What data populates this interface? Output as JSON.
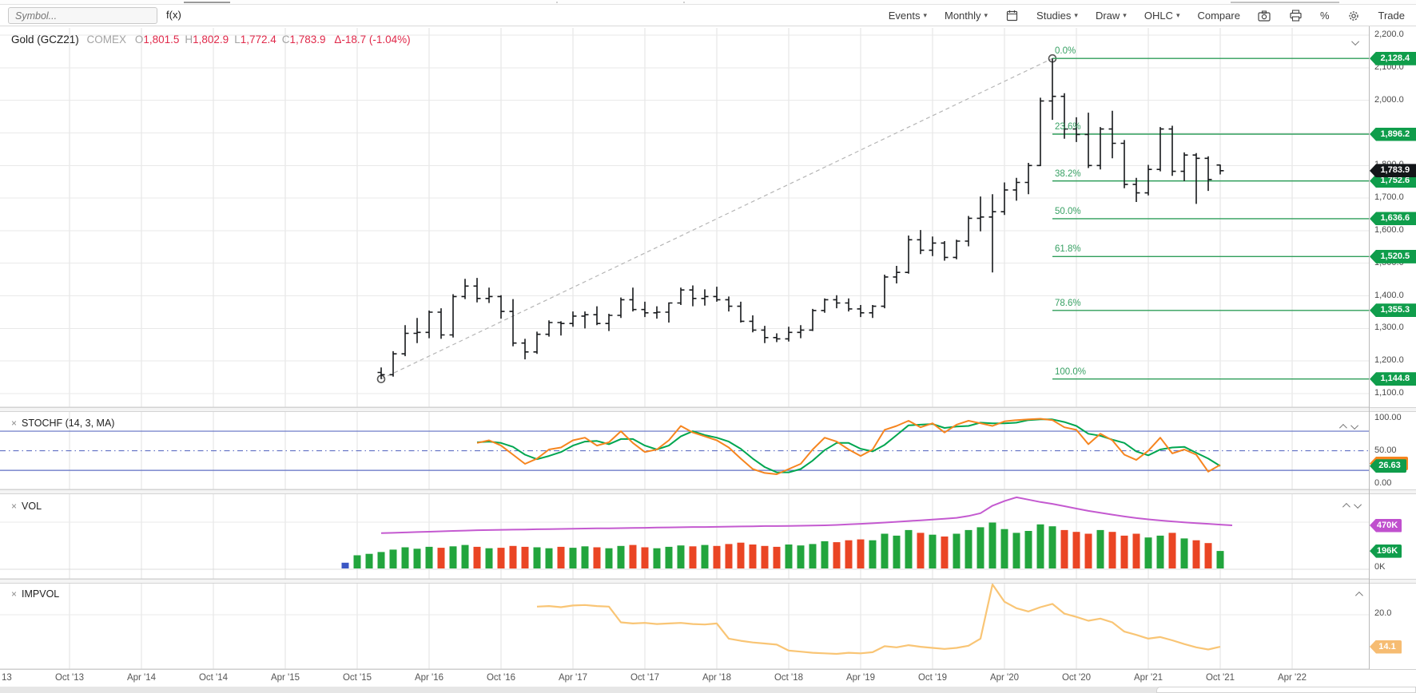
{
  "toolbar": {
    "symbol_placeholder": "Symbol...",
    "fx_label": "f(x)",
    "menus": [
      {
        "label": "Events",
        "caret": true
      },
      {
        "label": "Monthly",
        "caret": true
      },
      {
        "label": "calendar",
        "icon": "calendar-icon"
      },
      {
        "label": "Studies",
        "caret": true
      },
      {
        "label": "Draw",
        "caret": true
      },
      {
        "label": "OHLC",
        "caret": true
      },
      {
        "label": "Compare",
        "caret": false
      },
      {
        "label": "camera",
        "icon": "camera-icon"
      },
      {
        "label": "print",
        "icon": "printer-icon"
      },
      {
        "label": "%",
        "icon": "percent-icon",
        "text_icon": true
      },
      {
        "label": "gear",
        "icon": "gear-icon"
      },
      {
        "label": "Trade",
        "caret": false
      }
    ]
  },
  "header": {
    "title": "Gold (GCZ21)",
    "exchange": "COMEX",
    "fields": [
      {
        "k": "O",
        "v": "1,801.5"
      },
      {
        "k": "H",
        "v": "1,802.9"
      },
      {
        "k": "L",
        "v": "1,772.4"
      },
      {
        "k": "C",
        "v": "1,783.9"
      }
    ],
    "change": "Δ-18.7 (-1.04%)"
  },
  "colors": {
    "bar": "#17191c",
    "fib_line": "#2f9e5a",
    "fib_text": "#38a164",
    "badge_green": "#0f9d4b",
    "badge_black": "#131619",
    "badge_purple": "#c050ce",
    "badge_lightorange": "#f6bc72",
    "stoch_orange": "#f6851f",
    "stoch_green": "#00a650",
    "vol_up": "#22a53d",
    "vol_down": "#ea4524",
    "vol_even": "#3b57c4",
    "vol_ma": "#c45ad0",
    "impvol_line": "#f9c575",
    "guide_blue": "#5f6fc3",
    "grid": "#e9e9e9",
    "vgrid": "#e2e2e2",
    "trend": "#b5b5b5",
    "red_text": "#e0294a"
  },
  "price_axis": {
    "ticks": [
      {
        "label": "2,200.0",
        "value": 2200
      },
      {
        "label": "2,100.0",
        "value": 2100
      },
      {
        "label": "2,000.0",
        "value": 2000
      },
      {
        "label": "1,900.0",
        "value": 1900
      },
      {
        "label": "1,800.0",
        "value": 1800
      },
      {
        "label": "1,700.0",
        "value": 1700
      },
      {
        "label": "1,600.0",
        "value": 1600
      },
      {
        "label": "1,500.0",
        "value": 1500
      },
      {
        "label": "1,400.0",
        "value": 1400
      },
      {
        "label": "1,300.0",
        "value": 1300
      },
      {
        "label": "1,200.0",
        "value": 1200
      },
      {
        "label": "1,100.0",
        "value": 1100
      }
    ]
  },
  "fib": {
    "levels": [
      {
        "label": "0.0%",
        "price_label": "2,128.4",
        "value": 2128.4
      },
      {
        "label": "23.6%",
        "price_label": "1,896.2",
        "value": 1896.2
      },
      {
        "label": "38.2%",
        "price_label": "1,752.6",
        "value": 1752.6
      },
      {
        "label": "50.0%",
        "price_label": "1,636.6",
        "value": 1636.6
      },
      {
        "label": "61.8%",
        "price_label": "1,520.5",
        "value": 1520.5
      },
      {
        "label": "78.6%",
        "price_label": "1,355.3",
        "value": 1355.3
      },
      {
        "label": "100.0%",
        "price_label": "1,144.8",
        "value": 1144.8
      }
    ]
  },
  "last_price": {
    "label": "1,783.9",
    "value": 1783.9
  },
  "panels": {
    "stochf": {
      "title": "STOCHF (14, 3, MA)",
      "ticks": [
        {
          "label": "100.00",
          "value": 100
        },
        {
          "label": "50.00",
          "value": 50
        },
        {
          "label": "0.00",
          "value": 0
        }
      ],
      "guides": [
        80,
        20
      ],
      "mid_guide": 50,
      "badge": {
        "label": "26.63",
        "value": 26.63
      },
      "ghost_value": 30.5
    },
    "vol": {
      "title": "VOL",
      "badges": [
        {
          "label": "470K",
          "value": 470,
          "color": "purple"
        },
        {
          "label": "196K",
          "value": 196,
          "color": "green"
        }
      ],
      "tick": {
        "label": "0K",
        "value": 0
      }
    },
    "impvol": {
      "title": "IMPVOL",
      "tick": {
        "label": "20.0",
        "value": 20
      },
      "badge": {
        "label": "14.1",
        "value": 14.1
      }
    }
  },
  "x_axis": {
    "labels": [
      "13",
      "Oct '13",
      "Apr '14",
      "Oct '14",
      "Apr '15",
      "Oct '15",
      "Apr '16",
      "Oct '16",
      "Apr '17",
      "Oct '17",
      "Apr '18",
      "Oct '18",
      "Apr '19",
      "Oct '19",
      "Apr '20",
      "Oct '20",
      "Apr '21",
      "Oct '21",
      "Apr '22"
    ]
  },
  "chart_data": [
    {
      "id": "price",
      "type": "ohlc",
      "title": "Gold (GCZ21) monthly OHLC",
      "ylim": [
        1100,
        2200
      ],
      "start_month": "2015-12",
      "ohlc": [
        [
          1165,
          1180,
          1144.8,
          1158
        ],
        [
          1158,
          1230,
          1152,
          1222
        ],
        [
          1222,
          1310,
          1215,
          1285
        ],
        [
          1285,
          1332,
          1255,
          1288
        ],
        [
          1288,
          1355,
          1270,
          1350
        ],
        [
          1350,
          1362,
          1268,
          1280
        ],
        [
          1280,
          1405,
          1272,
          1398
        ],
        [
          1398,
          1452,
          1390,
          1430
        ],
        [
          1430,
          1455,
          1380,
          1392
        ],
        [
          1392,
          1425,
          1378,
          1398
        ],
        [
          1398,
          1402,
          1330,
          1352
        ],
        [
          1352,
          1390,
          1245,
          1255
        ],
        [
          1255,
          1268,
          1205,
          1228
        ],
        [
          1228,
          1290,
          1222,
          1282
        ],
        [
          1282,
          1325,
          1275,
          1318
        ],
        [
          1318,
          1322,
          1278,
          1315
        ],
        [
          1315,
          1352,
          1305,
          1338
        ],
        [
          1338,
          1352,
          1300,
          1342
        ],
        [
          1342,
          1368,
          1310,
          1315
        ],
        [
          1315,
          1345,
          1292,
          1340
        ],
        [
          1340,
          1395,
          1332,
          1388
        ],
        [
          1388,
          1425,
          1352,
          1358
        ],
        [
          1358,
          1382,
          1335,
          1348
        ],
        [
          1348,
          1368,
          1330,
          1350
        ],
        [
          1350,
          1380,
          1318,
          1378
        ],
        [
          1378,
          1425,
          1372,
          1418
        ],
        [
          1418,
          1432,
          1368,
          1392
        ],
        [
          1392,
          1420,
          1370,
          1398
        ],
        [
          1398,
          1428,
          1382,
          1388
        ],
        [
          1388,
          1398,
          1352,
          1368
        ],
        [
          1368,
          1382,
          1318,
          1322
        ],
        [
          1322,
          1340,
          1288,
          1295
        ],
        [
          1295,
          1308,
          1255,
          1272
        ],
        [
          1272,
          1285,
          1258,
          1268
        ],
        [
          1268,
          1305,
          1260,
          1288
        ],
        [
          1288,
          1310,
          1270,
          1295
        ],
        [
          1295,
          1360,
          1292,
          1355
        ],
        [
          1355,
          1392,
          1348,
          1388
        ],
        [
          1388,
          1402,
          1362,
          1378
        ],
        [
          1378,
          1392,
          1352,
          1360
        ],
        [
          1360,
          1372,
          1335,
          1348
        ],
        [
          1348,
          1372,
          1332,
          1368
        ],
        [
          1368,
          1465,
          1362,
          1458
        ],
        [
          1458,
          1492,
          1438,
          1472
        ],
        [
          1472,
          1585,
          1468,
          1572
        ],
        [
          1572,
          1602,
          1528,
          1540
        ],
        [
          1540,
          1582,
          1522,
          1562
        ],
        [
          1562,
          1568,
          1508,
          1518
        ],
        [
          1518,
          1572,
          1512,
          1568
        ],
        [
          1568,
          1645,
          1552,
          1638
        ],
        [
          1638,
          1705,
          1598,
          1642
        ],
        [
          1642,
          1712,
          1472,
          1658
        ],
        [
          1658,
          1748,
          1648,
          1725
        ],
        [
          1725,
          1762,
          1692,
          1748
        ],
        [
          1748,
          1808,
          1712,
          1800
        ],
        [
          1800,
          2008,
          1798,
          1998
        ],
        [
          1998,
          2128.4,
          1940,
          2012
        ],
        [
          2012,
          2022,
          1882,
          1912
        ],
        [
          1912,
          1948,
          1872,
          1895
        ],
        [
          1895,
          1962,
          1792,
          1800
        ],
        [
          1800,
          1918,
          1788,
          1912
        ],
        [
          1912,
          1968,
          1822,
          1868
        ],
        [
          1868,
          1878,
          1730,
          1742
        ],
        [
          1742,
          1762,
          1688,
          1716
        ],
        [
          1716,
          1802,
          1708,
          1788
        ],
        [
          1788,
          1918,
          1782,
          1912
        ],
        [
          1912,
          1922,
          1768,
          1782
        ],
        [
          1782,
          1840,
          1752,
          1832
        ],
        [
          1832,
          1838,
          1682,
          1822
        ],
        [
          1822,
          1828,
          1722,
          1757
        ],
        [
          1801.5,
          1802.9,
          1772.4,
          1783.9
        ]
      ],
      "trendline": {
        "from_month": 0,
        "from_value": 1144.8,
        "to_month": 56,
        "to_value": 2128.4
      }
    },
    {
      "id": "stochf",
      "type": "line",
      "ylim": [
        0,
        100
      ],
      "series": [
        {
          "name": "fast-k",
          "color": "stoch_orange",
          "start_month": 8,
          "values": [
            62,
            66,
            58,
            44,
            30,
            38,
            52,
            55,
            66,
            70,
            58,
            63,
            80,
            62,
            48,
            52,
            66,
            88,
            78,
            72,
            66,
            55,
            38,
            22,
            16,
            14,
            22,
            30,
            52,
            70,
            64,
            52,
            42,
            52,
            82,
            88,
            96,
            86,
            92,
            78,
            90,
            96,
            92,
            88,
            95,
            97,
            98,
            99,
            97,
            86,
            82,
            60,
            76,
            66,
            44,
            36,
            50,
            70,
            46,
            52,
            44,
            18,
            28.5
          ]
        },
        {
          "name": "fast-d",
          "color": "stoch_green",
          "start_month": 8,
          "values": [
            63,
            64,
            62,
            56,
            44,
            37,
            42,
            48,
            58,
            64,
            65,
            60,
            68,
            68,
            58,
            52,
            58,
            72,
            80,
            74,
            70,
            64,
            53,
            38,
            25,
            17,
            17,
            22,
            35,
            51,
            62,
            62,
            53,
            49,
            59,
            74,
            89,
            90,
            91,
            85,
            87,
            88,
            93,
            92,
            92,
            93,
            97,
            98,
            98,
            94,
            88,
            76,
            73,
            67,
            62,
            49,
            43,
            52,
            55,
            56,
            47,
            38,
            26.63
          ]
        }
      ],
      "current": 26.63
    },
    {
      "id": "vol",
      "type": "bar",
      "units": "K contracts",
      "bars": {
        "start_month": -3,
        "pre_dirs": [
          "even",
          "up",
          "up"
        ],
        "values": [
          70,
          150,
          165,
          185,
          210,
          235,
          220,
          240,
          230,
          245,
          260,
          240,
          225,
          230,
          250,
          240,
          235,
          225,
          240,
          230,
          245,
          235,
          225,
          250,
          260,
          235,
          225,
          240,
          255,
          245,
          260,
          250,
          270,
          285,
          265,
          250,
          240,
          265,
          255,
          270,
          300,
          290,
          310,
          320,
          310,
          380,
          360,
          420,
          390,
          370,
          350,
          380,
          420,
          450,
          500,
          430,
          390,
          410,
          480,
          460,
          420,
          400,
          380,
          420,
          400,
          360,
          380,
          340,
          360,
          390,
          330,
          310,
          280,
          196
        ]
      },
      "ma_line": {
        "start_month": 0,
        "color": "vol_ma",
        "values": [
          386,
          390,
          394,
          398,
          402,
          406,
          410,
          414,
          418,
          420,
          422,
          424,
          426,
          428,
          430,
          432,
          434,
          436,
          438,
          438,
          440,
          442,
          444,
          446,
          448,
          450,
          452,
          452,
          454,
          456,
          458,
          460,
          462,
          462,
          464,
          466,
          468,
          470,
          474,
          480,
          486,
          492,
          500,
          508,
          516,
          524,
          532,
          540,
          550,
          570,
          600,
          680,
          730,
          770,
          745,
          720,
          700,
          675,
          650,
          625,
          605,
          585,
          565,
          548,
          534,
          522,
          512,
          502,
          494,
          486,
          478,
          470
        ]
      },
      "current_bar": 196,
      "current_ma": 470
    },
    {
      "id": "impvol",
      "type": "line",
      "start_month": 13,
      "values": [
        21.5,
        21.6,
        21.4,
        21.7,
        21.8,
        21.6,
        21.5,
        18.6,
        18.4,
        18.5,
        18.3,
        18.4,
        18.5,
        18.3,
        18.2,
        18.4,
        15.6,
        15.2,
        14.9,
        14.7,
        14.5,
        13.4,
        13.2,
        13.0,
        12.9,
        12.8,
        13.0,
        12.9,
        13.1,
        14.2,
        14.0,
        14.4,
        14.1,
        13.9,
        13.7,
        13.9,
        14.3,
        15.6,
        25.8,
        22.4,
        21.2,
        20.6,
        21.4,
        22.0,
        20.2,
        19.6,
        18.9,
        19.3,
        18.6,
        16.9,
        16.3,
        15.6,
        15.9,
        15.3,
        14.6,
        14.0,
        13.6,
        14.1
      ],
      "current": 14.1
    }
  ]
}
